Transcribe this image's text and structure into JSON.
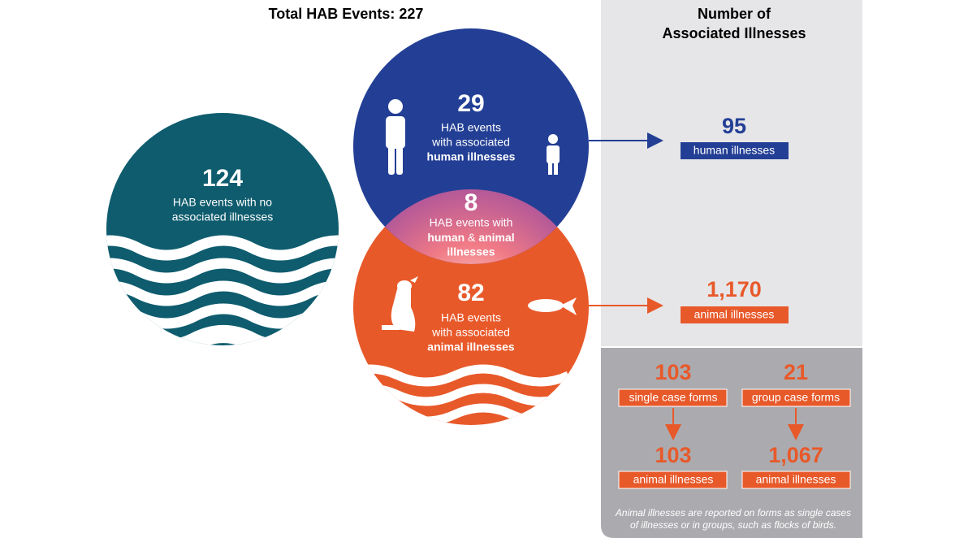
{
  "title": "Total HAB Events: 227",
  "right_header": [
    "Number of",
    "Associated Illnesses"
  ],
  "no_illness": {
    "count": "124",
    "lines": [
      "HAB events with no",
      "associated illnesses"
    ]
  },
  "human": {
    "count": "29",
    "lines": [
      "HAB events",
      "with associated"
    ],
    "bold": "human illnesses"
  },
  "overlap": {
    "count": "8",
    "line": "HAB events with",
    "bold1": "human",
    "amp": "&",
    "bold2": "animal",
    "bold3": "illnesses"
  },
  "animal": {
    "count": "82",
    "lines": [
      "HAB events",
      "with associated"
    ],
    "bold": "animal illnesses"
  },
  "human_illnesses": {
    "count": "95",
    "label": "human illnesses"
  },
  "animal_illnesses": {
    "count": "1,170",
    "label": "animal illnesses"
  },
  "single": {
    "count": "103",
    "label": "single case forms",
    "result_count": "103",
    "result_label": "animal illnesses"
  },
  "group": {
    "count": "21",
    "label": "group case forms",
    "result_count": "1,067",
    "result_label": "animal illnesses"
  },
  "footnote": [
    "Animal illnesses are reported on forms as single cases",
    "of illnesses or in groups, such as flocks of birds."
  ]
}
